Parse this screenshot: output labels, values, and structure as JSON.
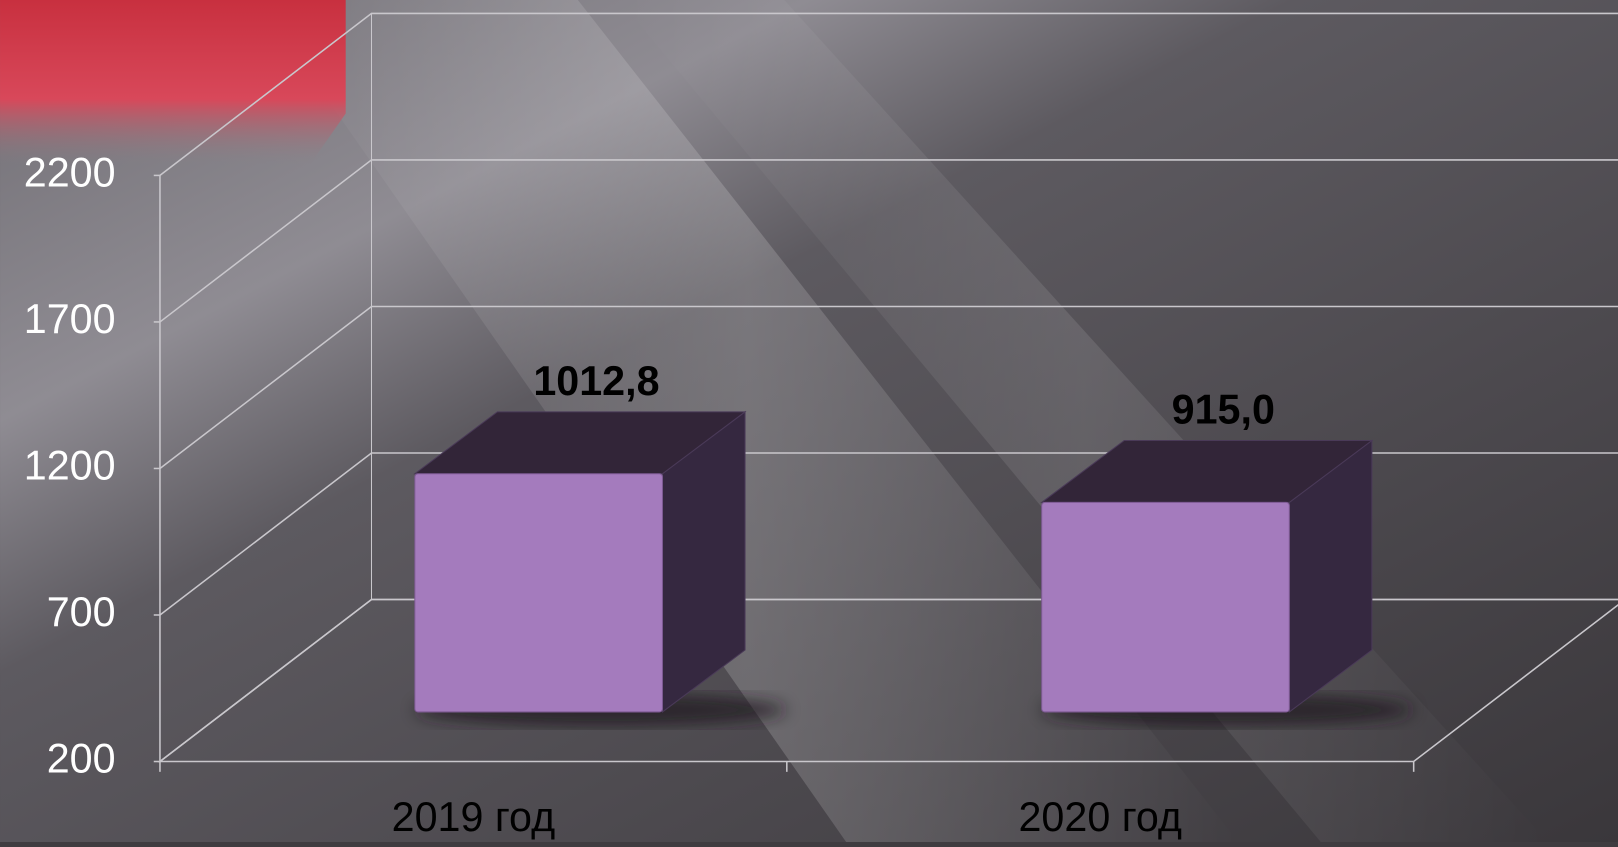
{
  "chart_data": {
    "type": "bar3d",
    "categories": [
      "2019 год",
      "2020 год"
    ],
    "values": [
      1012.8,
      915.0
    ],
    "value_labels": [
      "1012,8",
      "915,0"
    ],
    "color": "#a47bbd",
    "ylim": [
      200,
      2200
    ],
    "yticks": [
      200,
      700,
      1200,
      1700,
      2200
    ],
    "grid": true
  }
}
